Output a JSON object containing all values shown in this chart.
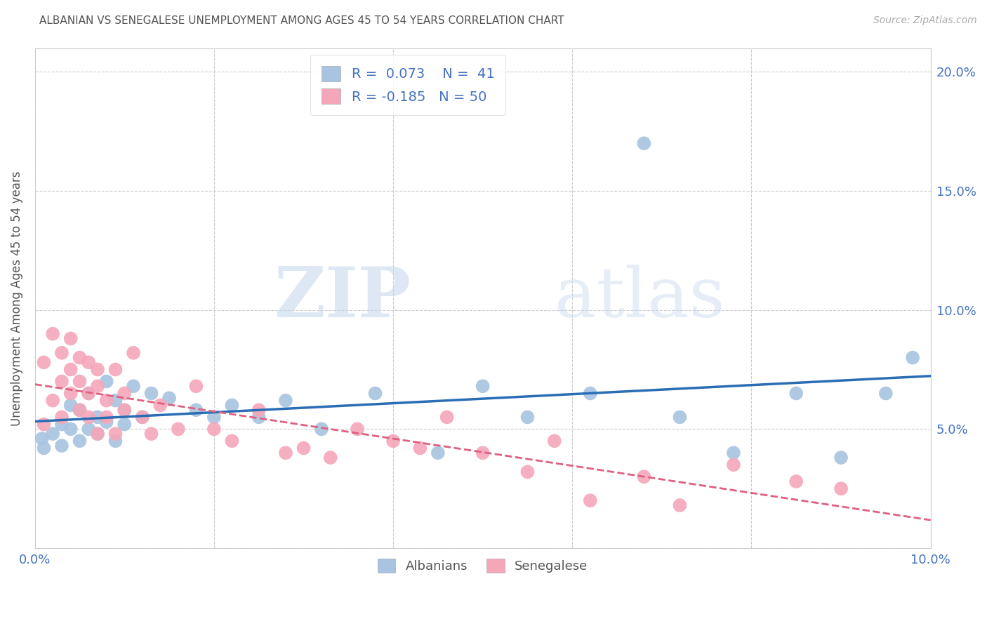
{
  "title": "ALBANIAN VS SENEGALESE UNEMPLOYMENT AMONG AGES 45 TO 54 YEARS CORRELATION CHART",
  "source": "Source: ZipAtlas.com",
  "ylabel": "Unemployment Among Ages 45 to 54 years",
  "xlim": [
    0.0,
    0.1
  ],
  "ylim": [
    0.0,
    0.21
  ],
  "xticks": [
    0.0,
    0.02,
    0.04,
    0.06,
    0.08,
    0.1
  ],
  "xtick_labels": [
    "0.0%",
    "",
    "",
    "",
    "",
    "10.0%"
  ],
  "yticks": [
    0.0,
    0.05,
    0.1,
    0.15,
    0.2
  ],
  "ytick_labels": [
    "",
    "5.0%",
    "10.0%",
    "15.0%",
    "20.0%"
  ],
  "albanian_R": 0.073,
  "albanian_N": 41,
  "senegalese_R": -0.185,
  "senegalese_N": 50,
  "albanian_color": "#a8c4e0",
  "senegalese_color": "#f4a7b9",
  "albanian_line_color": "#2a6db5",
  "senegalese_line_color": "#e06080",
  "title_color": "#555555",
  "source_color": "#888888",
  "axis_color": "#4472c4",
  "watermark_zip": "ZIP",
  "watermark_atlas": "atlas",
  "albanian_x": [
    0.0008,
    0.001,
    0.002,
    0.003,
    0.003,
    0.004,
    0.004,
    0.005,
    0.005,
    0.006,
    0.006,
    0.007,
    0.007,
    0.008,
    0.008,
    0.009,
    0.009,
    0.01,
    0.01,
    0.011,
    0.012,
    0.013,
    0.015,
    0.018,
    0.02,
    0.022,
    0.025,
    0.028,
    0.032,
    0.038,
    0.045,
    0.05,
    0.055,
    0.062,
    0.068,
    0.072,
    0.078,
    0.085,
    0.09,
    0.095,
    0.098
  ],
  "albanian_y": [
    0.046,
    0.042,
    0.048,
    0.043,
    0.052,
    0.05,
    0.06,
    0.045,
    0.058,
    0.05,
    0.065,
    0.048,
    0.055,
    0.07,
    0.053,
    0.062,
    0.045,
    0.058,
    0.052,
    0.068,
    0.055,
    0.065,
    0.063,
    0.058,
    0.055,
    0.06,
    0.055,
    0.062,
    0.05,
    0.065,
    0.04,
    0.068,
    0.055,
    0.065,
    0.17,
    0.055,
    0.04,
    0.065,
    0.038,
    0.065,
    0.08
  ],
  "senegalese_x": [
    0.001,
    0.001,
    0.002,
    0.002,
    0.003,
    0.003,
    0.003,
    0.004,
    0.004,
    0.004,
    0.005,
    0.005,
    0.005,
    0.006,
    0.006,
    0.006,
    0.007,
    0.007,
    0.007,
    0.008,
    0.008,
    0.009,
    0.009,
    0.01,
    0.01,
    0.011,
    0.012,
    0.013,
    0.014,
    0.016,
    0.018,
    0.02,
    0.022,
    0.025,
    0.028,
    0.03,
    0.033,
    0.036,
    0.04,
    0.043,
    0.046,
    0.05,
    0.055,
    0.058,
    0.062,
    0.068,
    0.072,
    0.078,
    0.085,
    0.09
  ],
  "senegalese_y": [
    0.052,
    0.078,
    0.062,
    0.09,
    0.07,
    0.082,
    0.055,
    0.075,
    0.088,
    0.065,
    0.08,
    0.07,
    0.058,
    0.065,
    0.078,
    0.055,
    0.068,
    0.075,
    0.048,
    0.062,
    0.055,
    0.075,
    0.048,
    0.065,
    0.058,
    0.082,
    0.055,
    0.048,
    0.06,
    0.05,
    0.068,
    0.05,
    0.045,
    0.058,
    0.04,
    0.042,
    0.038,
    0.05,
    0.045,
    0.042,
    0.055,
    0.04,
    0.032,
    0.045,
    0.02,
    0.03,
    0.018,
    0.035,
    0.028,
    0.025
  ]
}
